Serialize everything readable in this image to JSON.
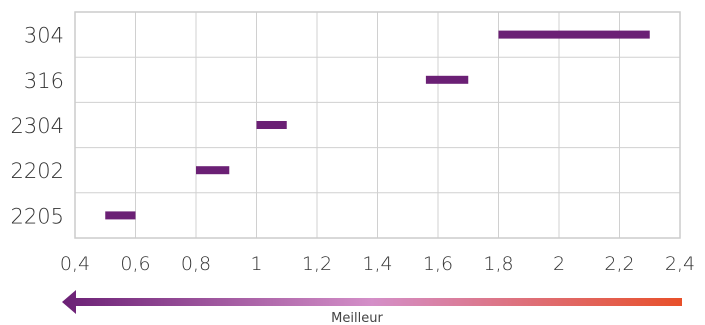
{
  "chart_data": {
    "type": "bar",
    "orientation": "horizontal-range",
    "categories": [
      "304",
      "316",
      "2304",
      "2202",
      "2205"
    ],
    "ranges": [
      [
        1.8,
        2.3
      ],
      [
        1.56,
        1.7
      ],
      [
        1.0,
        1.1
      ],
      [
        0.8,
        0.91
      ],
      [
        0.5,
        0.6
      ]
    ],
    "xlim": [
      0.4,
      2.4
    ],
    "x_ticks": [
      "0,4",
      "0,6",
      "0,8",
      "1",
      "1,2",
      "1,4",
      "1,6",
      "1,8",
      "2",
      "2,2",
      "2,4"
    ],
    "grid": true,
    "bar_color": "#6b2075",
    "arrow": {
      "label": "Meilleur",
      "direction": "left",
      "gradient": [
        "#6b2075",
        "#d48fc8",
        "#e8502a"
      ]
    }
  }
}
